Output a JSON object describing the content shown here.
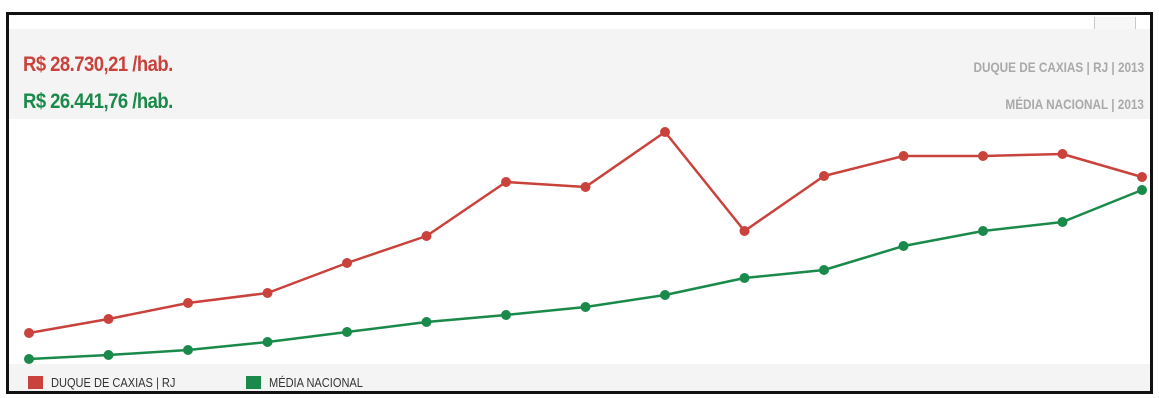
{
  "header": {
    "value_red": "R$ 28.730,21 /hab.",
    "value_green": "R$ 26.441,76 /hab.",
    "label_red": "DUQUE DE CAXIAS | RJ | 2013",
    "label_green": "MÉDIA NACIONAL | 2013"
  },
  "colors": {
    "red": "#c9423c",
    "green": "#1a8a4b"
  },
  "chart_data": {
    "type": "line",
    "x": [
      1,
      2,
      3,
      4,
      5,
      6,
      7,
      8,
      9,
      10,
      11,
      12,
      13,
      14,
      15
    ],
    "ylim": [
      0,
      100
    ],
    "grid": false,
    "legend": "bottom-left",
    "series": [
      {
        "name": "DUQUE DE CAXIAS | RJ",
        "values": [
          14.4,
          20.0,
          26.4,
          30.4,
          42.4,
          53.2,
          74.8,
          72.8,
          94.8,
          55.2,
          77.2,
          85.2,
          85.2,
          86.0,
          76.8
        ]
      },
      {
        "name": "MÉDIA NACIONAL",
        "values": [
          4.0,
          5.6,
          7.6,
          10.8,
          14.8,
          18.8,
          21.6,
          24.8,
          29.6,
          36.4,
          39.6,
          49.2,
          55.2,
          58.8,
          71.6
        ]
      }
    ]
  },
  "legend": {
    "red_label": "DUQUE DE CAXIAS | RJ",
    "green_label": "MÉDIA NACIONAL"
  }
}
